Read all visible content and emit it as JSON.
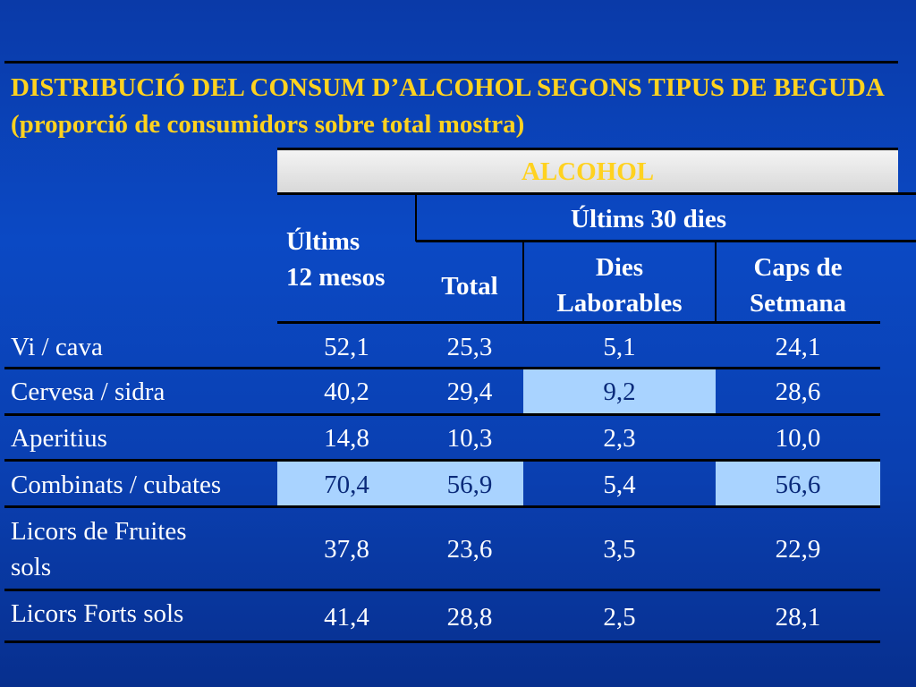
{
  "title": "DISTRIBUCIÓ DEL CONSUM D’ALCOHOL SEGONS TIPUS DE BEGUDA (proporció de consumidors sobre total mostra)",
  "header": {
    "alcohol": "ALCOHOL",
    "ultims12": "Últims\n12 mesos",
    "ultims30": "Últims 30 dies",
    "total": "Total",
    "laborables": "Dies\nLaborables",
    "setmana": "Caps de\nSetmana"
  },
  "rows": [
    {
      "label": "Vi / cava",
      "v12": "52,1",
      "total": "25,3",
      "lab": "5,1",
      "set": "24,1"
    },
    {
      "label": "Cervesa / sidra",
      "v12": "40,2",
      "total": "29,4",
      "lab": "9,2",
      "set": "28,6"
    },
    {
      "label": "Aperitius",
      "v12": "14,8",
      "total": "10,3",
      "lab": "2,3",
      "set": "10,0"
    },
    {
      "label": "Combinats / cubates",
      "v12": "70,4",
      "total": "56,9",
      "lab": "5,4",
      "set": "56,6"
    },
    {
      "label": "Licors de Fruites\nsols",
      "v12": "37,8",
      "total": "23,6",
      "lab": "3,5",
      "set": "22,9"
    },
    {
      "label": "Licors Forts sols",
      "v12": "41,4",
      "total": "28,8",
      "lab": "2,5",
      "set": "28,1"
    }
  ]
}
